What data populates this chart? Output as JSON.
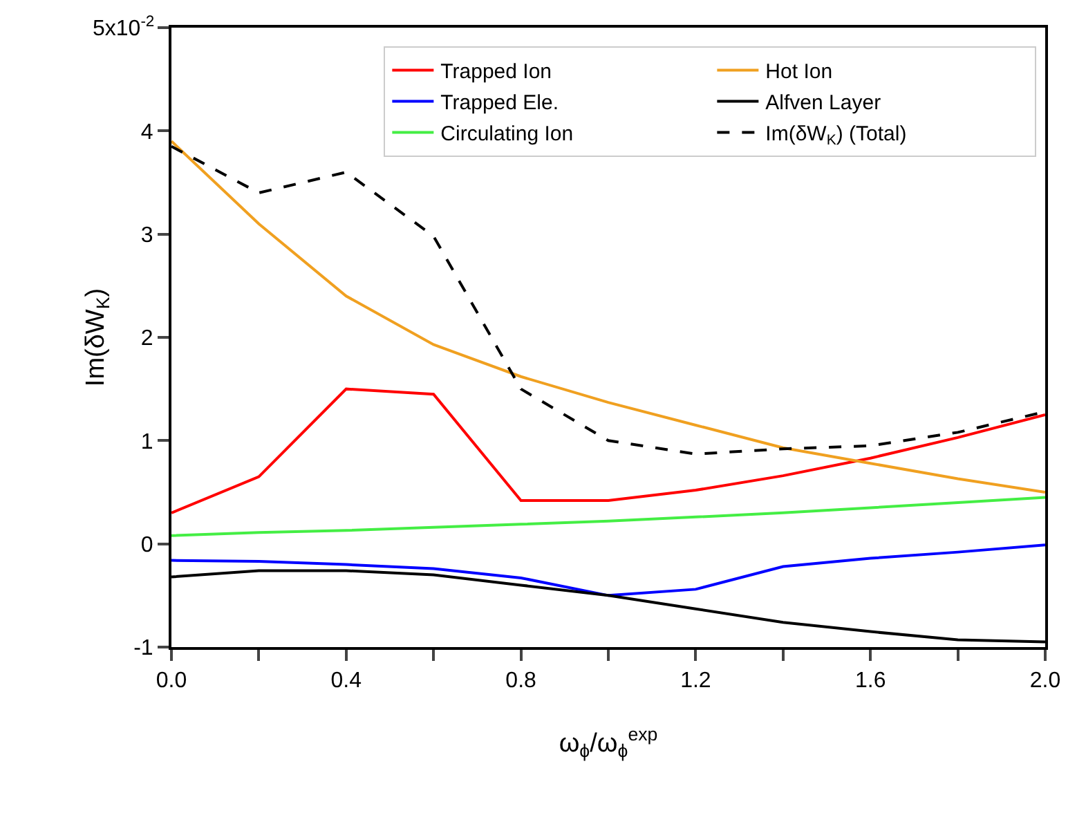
{
  "chart_data": {
    "type": "line",
    "xlabel": "ω$_{ϕ}$/ω$_{ϕ}$$^{exp}$",
    "ylabel": "Im(δW$_{K}$)",
    "x": [
      0,
      0.2,
      0.4,
      0.6,
      0.8,
      1.0,
      1.2,
      1.4,
      1.6,
      1.8,
      2.0
    ],
    "series": [
      {
        "name": "Trapped Ion",
        "color": "#ff0000",
        "values": [
          0.3,
          0.65,
          1.5,
          1.45,
          0.42,
          0.42,
          0.52,
          0.66,
          0.83,
          1.03,
          1.25
        ]
      },
      {
        "name": "Hot Ion",
        "color": "#f0a020",
        "values": [
          3.9,
          3.1,
          2.4,
          1.93,
          1.62,
          1.37,
          1.15,
          0.93,
          0.78,
          0.63,
          0.5
        ]
      },
      {
        "name": "Trapped Ele.",
        "color": "#0000ff",
        "values": [
          -0.16,
          -0.17,
          -0.2,
          -0.24,
          -0.33,
          -0.5,
          -0.44,
          -0.22,
          -0.14,
          -0.08,
          -0.01
        ]
      },
      {
        "name": "Alfven Layer",
        "color": "#000000",
        "values": [
          -0.32,
          -0.26,
          -0.26,
          -0.3,
          -0.4,
          -0.5,
          -0.63,
          -0.76,
          -0.85,
          -0.93,
          -0.95
        ]
      },
      {
        "name": "Circulating Ion",
        "color": "#44ee44",
        "values": [
          0.08,
          0.11,
          0.13,
          0.16,
          0.19,
          0.22,
          0.26,
          0.3,
          0.35,
          0.4,
          0.45
        ]
      },
      {
        "name": "Im(δW$_{K}$) (Total)",
        "color": "#000000",
        "line_style": "dashed",
        "values": [
          3.85,
          3.4,
          3.6,
          2.98,
          1.5,
          1.0,
          0.87,
          0.92,
          0.95,
          1.08,
          1.28
        ]
      }
    ],
    "xlim": [
      0,
      2.0
    ],
    "xticks": [
      {
        "value": 0,
        "label": "0.0"
      },
      {
        "value": 0.2,
        "label": null
      },
      {
        "value": 0.4,
        "label": "0.4"
      },
      {
        "value": 0.6,
        "label": null
      },
      {
        "value": 0.8,
        "label": "0.8"
      },
      {
        "value": 1.0,
        "label": null
      },
      {
        "value": 1.2,
        "label": "1.2"
      },
      {
        "value": 1.4,
        "label": null
      },
      {
        "value": 1.6,
        "label": "1.6"
      },
      {
        "value": 1.8,
        "label": null
      },
      {
        "value": 2.0,
        "label": "2.0"
      }
    ],
    "ylim": [
      -1,
      5
    ],
    "yticks": [
      -1,
      0,
      1,
      2,
      3,
      4,
      {
        "value": 5,
        "label": null
      }
    ],
    "annotations": [
      "5x10$^{-2}$"
    ],
    "grid": false,
    "legend": "top right",
    "line_style": "solid"
  }
}
